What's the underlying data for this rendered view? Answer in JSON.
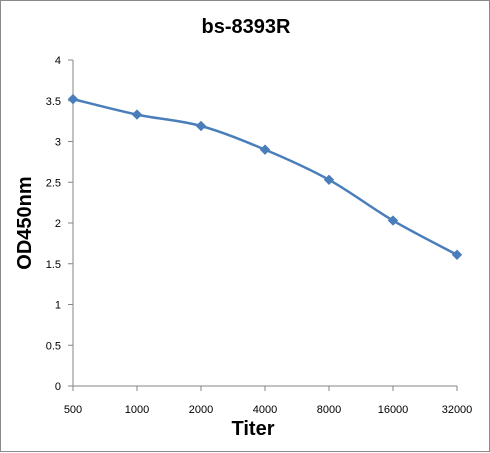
{
  "chart_data": {
    "type": "line",
    "title": "bs-8393R",
    "xlabel": "Titer",
    "ylabel": "OD450nm",
    "categories": [
      "500",
      "1000",
      "2000",
      "4000",
      "8000",
      "16000",
      "32000"
    ],
    "series": [
      {
        "values": [
          3.52,
          3.33,
          3.19,
          2.9,
          2.53,
          2.03,
          1.61
        ]
      }
    ],
    "yticks": [
      "0",
      "0.5",
      "1",
      "1.5",
      "2",
      "2.5",
      "3",
      "3.5",
      "4"
    ],
    "ylim": [
      0,
      4
    ],
    "grid": false,
    "legend": "none",
    "line_color": "#4a7ebb",
    "marker": "diamond"
  }
}
